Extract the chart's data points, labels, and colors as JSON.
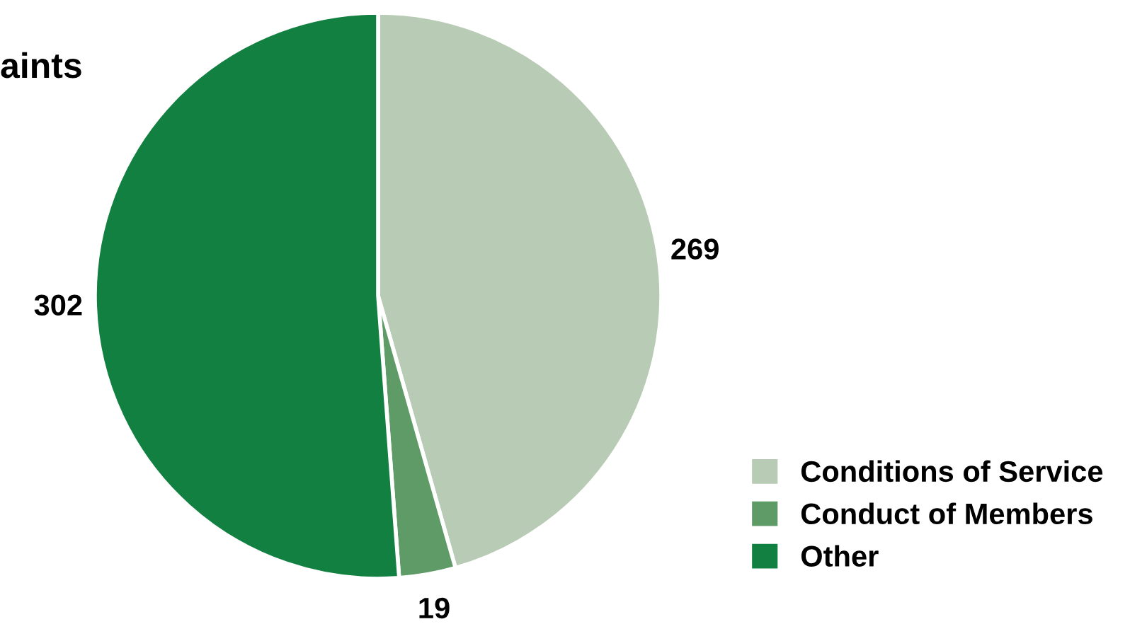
{
  "chart_data": {
    "type": "pie",
    "title": "aints",
    "categories": [
      "Conditions of Service",
      "Conduct of Members",
      "Other"
    ],
    "values": [
      269,
      19,
      302
    ],
    "colors": [
      "#b8cbb4",
      "#5f9b66",
      "#118040"
    ],
    "data_labels": true,
    "legend": "bottom right"
  }
}
